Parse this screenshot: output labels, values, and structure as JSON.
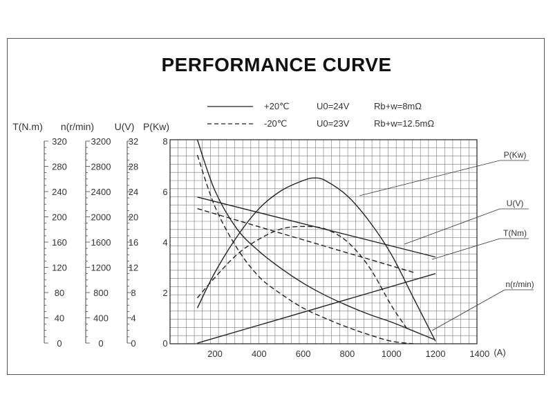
{
  "chart_data": {
    "type": "line",
    "title": "PERFORMANCE CURVE",
    "xlabel": "(A)",
    "x_ticks": [
      "200",
      "400",
      "600",
      "800",
      "1000",
      "1200",
      "1400"
    ],
    "xlim": [
      0,
      1400
    ],
    "grid": true,
    "legend": [
      {
        "style": "solid",
        "temp": "+20℃",
        "voltage": "U0=24V",
        "resistance": "Rb+w=8mΩ"
      },
      {
        "style": "dashed",
        "temp": "-20℃",
        "voltage": "U0=23V",
        "resistance": "Rb+w=12.5mΩ"
      }
    ],
    "axes": [
      {
        "label": "T(N.m)",
        "range": [
          0,
          320
        ],
        "ticks": [
          "320",
          "280",
          "240",
          "200",
          "160",
          "120",
          "80",
          "40",
          "0"
        ]
      },
      {
        "label": "n(r/min)",
        "range": [
          0,
          3200
        ],
        "ticks": [
          "3200",
          "2800",
          "2400",
          "2000",
          "1600",
          "1200",
          "800",
          "400",
          "0"
        ]
      },
      {
        "label": "U(V)",
        "range": [
          0,
          32
        ],
        "ticks": [
          "32",
          "28",
          "24",
          "20",
          "16",
          "12",
          "8",
          "4",
          "0"
        ]
      },
      {
        "label": "P(Kw)",
        "range": [
          0,
          8
        ],
        "ticks": [
          "8",
          "6",
          "4",
          "2",
          "0"
        ]
      }
    ],
    "curve_labels": [
      "P(Kw)",
      "U(V)",
      "T(Nm)",
      "n(r/min)"
    ],
    "series": [
      {
        "name": "P(Kw)",
        "style": "solid",
        "scale": "P",
        "x": [
          120,
          200,
          300,
          400,
          500,
          600,
          650,
          700,
          800,
          900,
          1000,
          1100,
          1200
        ],
        "y": [
          1.4,
          2.8,
          4.2,
          5.3,
          6.0,
          6.4,
          6.5,
          6.4,
          5.8,
          4.8,
          3.5,
          1.8,
          0.1
        ]
      },
      {
        "name": "P(Kw)",
        "style": "dashed",
        "scale": "P",
        "x": [
          120,
          200,
          300,
          400,
          500,
          600,
          700,
          800,
          900,
          1000,
          1070
        ],
        "y": [
          1.8,
          2.6,
          3.5,
          4.1,
          4.5,
          4.6,
          4.5,
          4.0,
          3.0,
          1.5,
          0.6
        ]
      },
      {
        "name": "U(V)",
        "style": "solid",
        "scale": "U",
        "x": [
          120,
          1200
        ],
        "y": [
          23,
          13.6
        ]
      },
      {
        "name": "U(V)",
        "style": "dashed",
        "scale": "U",
        "x": [
          120,
          1100
        ],
        "y": [
          21.2,
          11.2
        ]
      },
      {
        "name": "T(Nm)",
        "style": "solid",
        "scale": "T",
        "x": [
          120,
          1200
        ],
        "y": [
          1,
          110
        ]
      },
      {
        "name": "n(r/min)",
        "style": "solid",
        "scale": "n",
        "x": [
          120,
          200,
          300,
          400,
          500,
          600,
          700,
          800,
          900,
          1000,
          1100,
          1200
        ],
        "y": [
          3200,
          2400,
          1800,
          1450,
          1180,
          950,
          760,
          600,
          460,
          340,
          200,
          60
        ]
      },
      {
        "name": "n(r/min)",
        "style": "dashed",
        "scale": "n",
        "x": [
          120,
          200,
          300,
          400,
          500,
          600,
          700,
          800,
          900,
          1000,
          1100
        ],
        "y": [
          2960,
          2150,
          1500,
          1050,
          780,
          560,
          400,
          260,
          140,
          40,
          0
        ]
      }
    ]
  }
}
